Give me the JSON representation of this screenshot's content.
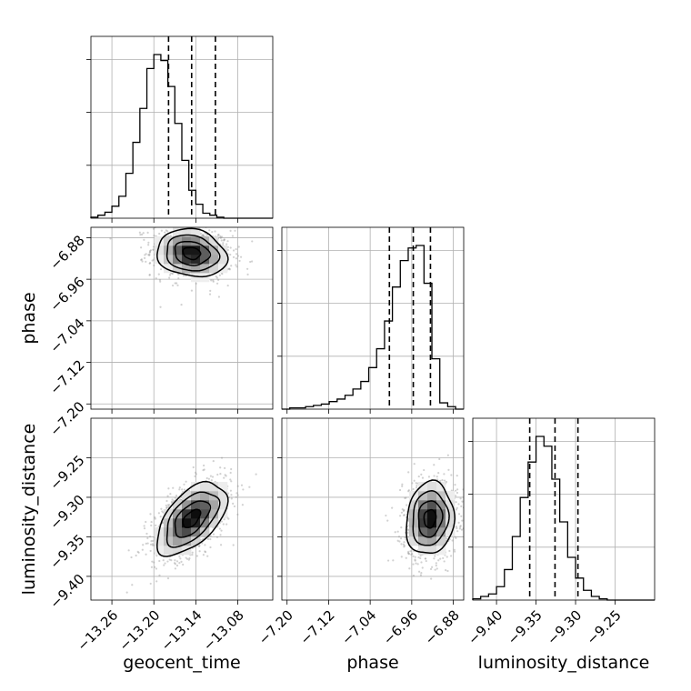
{
  "chart_data": {
    "type": "corner",
    "parameters": [
      "geocent_time",
      "phase",
      "luminosity_distance"
    ],
    "axes": {
      "geocent_time": {
        "ticks": [
          -13.26,
          -13.2,
          -13.14,
          -13.08
        ],
        "tick_labels": [
          "−13.26",
          "−13.20",
          "−13.14",
          "−13.08"
        ],
        "range": [
          -13.29,
          -13.03
        ]
      },
      "phase": {
        "ticks": [
          -7.2,
          -7.12,
          -7.04,
          -6.96,
          -6.88
        ],
        "tick_labels": [
          "−7.20",
          "−7.12",
          "−7.04",
          "−6.96",
          "−6.88"
        ],
        "range": [
          -7.21,
          -6.86
        ]
      },
      "luminosity_distance": {
        "ticks": [
          -9.4,
          -9.35,
          -9.3,
          -9.25
        ],
        "tick_labels": [
          "−9.40",
          "−9.35",
          "−9.30",
          "−9.25"
        ],
        "range": [
          -9.43,
          -9.2
        ]
      }
    },
    "marginals": {
      "geocent_time": {
        "quantiles": [
          -13.179,
          -13.146,
          -13.112
        ],
        "bins_start": -13.29,
        "bin_width": 0.01,
        "counts": [
          1,
          3,
          6,
          12,
          22,
          45,
          76,
          110,
          150,
          164,
          158,
          132,
          95,
          58,
          28,
          14,
          5,
          3,
          1,
          0,
          0,
          0,
          0,
          0,
          0,
          0
        ]
      },
      "phase": {
        "quantiles": [
          -7.003,
          -6.957,
          -6.924
        ],
        "bins_start": -7.21,
        "bin_width": 0.0152,
        "counts": [
          0,
          1,
          1,
          2,
          3,
          4,
          6,
          8,
          11,
          16,
          22,
          33,
          48,
          70,
          97,
          118,
          128,
          130,
          100,
          40,
          5,
          2,
          0
        ]
      },
      "luminosity_distance": {
        "quantiles": [
          -9.358,
          -9.326,
          -9.297
        ],
        "bins_start": -9.43,
        "bin_width": 0.01,
        "counts": [
          1,
          3,
          5,
          11,
          25,
          52,
          84,
          113,
          134,
          126,
          99,
          64,
          35,
          18,
          8,
          3,
          1,
          0,
          0,
          0,
          0,
          0,
          0
        ]
      }
    },
    "joint": [
      {
        "x": "geocent_time",
        "y": "phase",
        "mean": [
          -13.146,
          -6.91
        ],
        "sigma": [
          0.025,
          0.023
        ],
        "corr": -0.15
      },
      {
        "x": "geocent_time",
        "y": "luminosity_distance",
        "mean": [
          -13.146,
          -9.327
        ],
        "sigma": [
          0.025,
          0.023
        ],
        "corr": 0.55
      },
      {
        "x": "phase",
        "y": "luminosity_distance",
        "mean": [
          -6.925,
          -9.327
        ],
        "sigma": [
          0.023,
          0.023
        ],
        "corr": 0.1
      }
    ],
    "grid": true
  }
}
